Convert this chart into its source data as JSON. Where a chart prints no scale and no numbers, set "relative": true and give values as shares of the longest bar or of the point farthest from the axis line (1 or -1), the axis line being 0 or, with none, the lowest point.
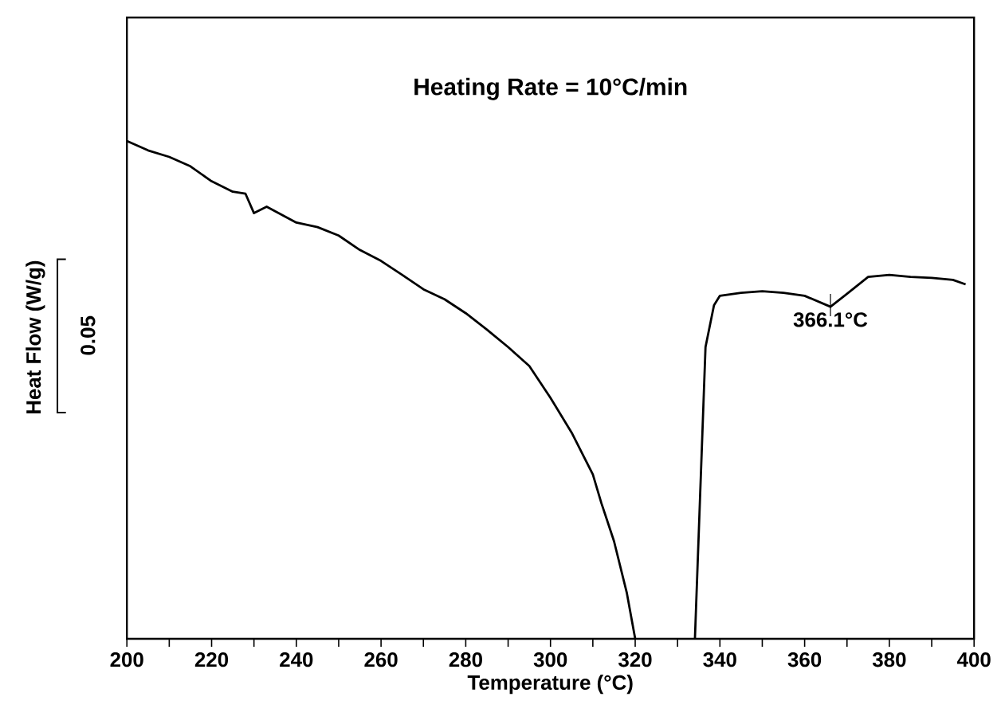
{
  "chart_data": {
    "type": "line",
    "relative": true,
    "title": "Heating Rate = 10°C/min",
    "xlabel": "Temperature (°C)",
    "ylabel": "Heat Flow (W/g)",
    "xlim": [
      200,
      400
    ],
    "xticks": [
      200,
      {
        "value": 210,
        "label": null
      },
      220,
      {
        "value": 230,
        "label": null
      },
      240,
      {
        "value": 250,
        "label": null
      },
      260,
      {
        "value": 270,
        "label": null
      },
      280,
      {
        "value": 290,
        "label": null
      },
      300,
      {
        "value": 310,
        "label": null
      },
      320,
      {
        "value": 330,
        "label": null
      },
      340,
      {
        "value": 350,
        "label": null
      },
      360,
      {
        "value": 370,
        "label": null
      },
      380,
      {
        "value": 390,
        "label": null
      },
      400
    ],
    "x": [
      200,
      205,
      210,
      215,
      220,
      225,
      228,
      230,
      233,
      240,
      245,
      250,
      255,
      260,
      265,
      270,
      275,
      280,
      285,
      290,
      295,
      300,
      305,
      310,
      312,
      315,
      318,
      320,
      327,
      334.1,
      336.6,
      338.6,
      340,
      345,
      350,
      355,
      360,
      366.1,
      370,
      375,
      380,
      385,
      390,
      395,
      398
    ],
    "series": [
      {
        "color": "#000000",
        "values": [
          1.0,
          0.981,
          0.968,
          0.949,
          0.919,
          0.898,
          0.894,
          0.855,
          0.868,
          0.836,
          0.827,
          0.81,
          0.781,
          0.759,
          0.731,
          0.702,
          0.682,
          0.654,
          0.621,
          0.586,
          0.548,
          0.484,
          0.414,
          0.33,
          0.273,
          0.196,
          0.093,
          0,
          null,
          0,
          0.586,
          0.67,
          0.689,
          0.695,
          0.698,
          0.695,
          0.689,
          0.667,
          0.693,
          0.727,
          0.731,
          0.727,
          0.725,
          0.721,
          0.712
        ]
      }
    ],
    "annotations": [
      {
        "text": "366.1°C",
        "x": 366.1,
        "y": 0.667
      },
      "0.05"
    ]
  }
}
